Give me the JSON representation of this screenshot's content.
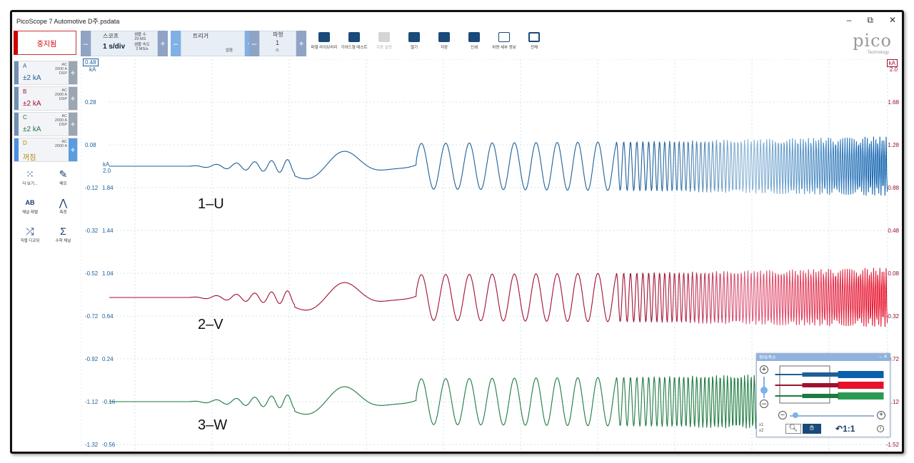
{
  "window": {
    "title": "PicoScope 7 Automotive D주.psdata",
    "controls": [
      "–",
      "⧉",
      "✕"
    ]
  },
  "toolbar": {
    "stop_label": "중지됨",
    "scope_label": "스코프",
    "timebase": "1 s/div",
    "samples_line1": "샘플 수",
    "samples_line2": "20 MS",
    "rate_line1": "샘플 속도",
    "rate_line2": "2 MS/s",
    "trigger_label": "트리거",
    "trigger_mode": "없음",
    "waveform_label": "파형",
    "waveform_num": "1",
    "waveform_den": "/1",
    "buttons": [
      {
        "label": "파형 라이브러리",
        "icon": "library-icon"
      },
      {
        "label": "가이드형 테스트",
        "icon": "car-icon"
      },
      {
        "label": "자동 설정",
        "icon": "wand-icon"
      },
      {
        "label": "열기",
        "icon": "folder-icon"
      },
      {
        "label": "저장",
        "icon": "save-icon"
      },
      {
        "label": "인쇄",
        "icon": "print-icon"
      },
      {
        "label": "차량 세부 정보",
        "icon": "clipboard-icon"
      },
      {
        "label": "전체",
        "icon": "fullscreen-icon"
      }
    ],
    "logo": "pico",
    "logo_sub": "Technology"
  },
  "channels": [
    {
      "name": "A",
      "range": "±2 kA",
      "coupling": "AC",
      "probe": "2000 A",
      "mode": "DSP",
      "color": "#1f5f99"
    },
    {
      "name": "B",
      "range": "±2 kA",
      "coupling": "AC",
      "probe": "2000 A",
      "mode": "DSP",
      "color": "#a01030"
    },
    {
      "name": "C",
      "range": "±2 kA",
      "coupling": "AC",
      "probe": "2000 A",
      "mode": "DSP",
      "color": "#1e7a40"
    },
    {
      "name": "D",
      "range": "꺼짐",
      "coupling": "AC",
      "probe": "2000 A",
      "mode": "",
      "color": "#b8860b"
    }
  ],
  "tools": [
    {
      "label": "더 보기...",
      "icon": "grid-icon"
    },
    {
      "label": "메모",
      "icon": "note-icon"
    },
    {
      "label": "채널 레벨",
      "icon": "abcd-icon"
    },
    {
      "label": "측정",
      "icon": "measure-icon"
    },
    {
      "label": "직렬 디코딩",
      "icon": "serial-icon"
    },
    {
      "label": "수학 채널",
      "icon": "sigma-icon"
    }
  ],
  "axes": {
    "left_unit": "kA",
    "left_top": "0.48",
    "left_ticks": [
      "0.28",
      "0.08",
      "-0.12",
      "-0.32",
      "-0.52",
      "-0.72",
      "-0.92",
      "-1.12",
      "-1.32"
    ],
    "mid_unit": "kA",
    "mid_top": "2.0",
    "mid_ticks": [
      "1.84",
      "1.44",
      "1.04",
      "0.64",
      "0.24",
      "-0.16",
      "-0.56"
    ],
    "right_unit": "kA",
    "right_top": "2.0",
    "right_ticks": [
      "1.68",
      "1.28",
      "0.88",
      "0.48",
      "0.08",
      "-0.32",
      "-0.72",
      "-1.12",
      "-1.52"
    ]
  },
  "annotations": [
    "1–U",
    "2–V",
    "3–W"
  ],
  "zoom_panel": {
    "title": "확대/축소",
    "ratio": "1:1",
    "x_label": "x1",
    "y_label": "x2"
  }
}
